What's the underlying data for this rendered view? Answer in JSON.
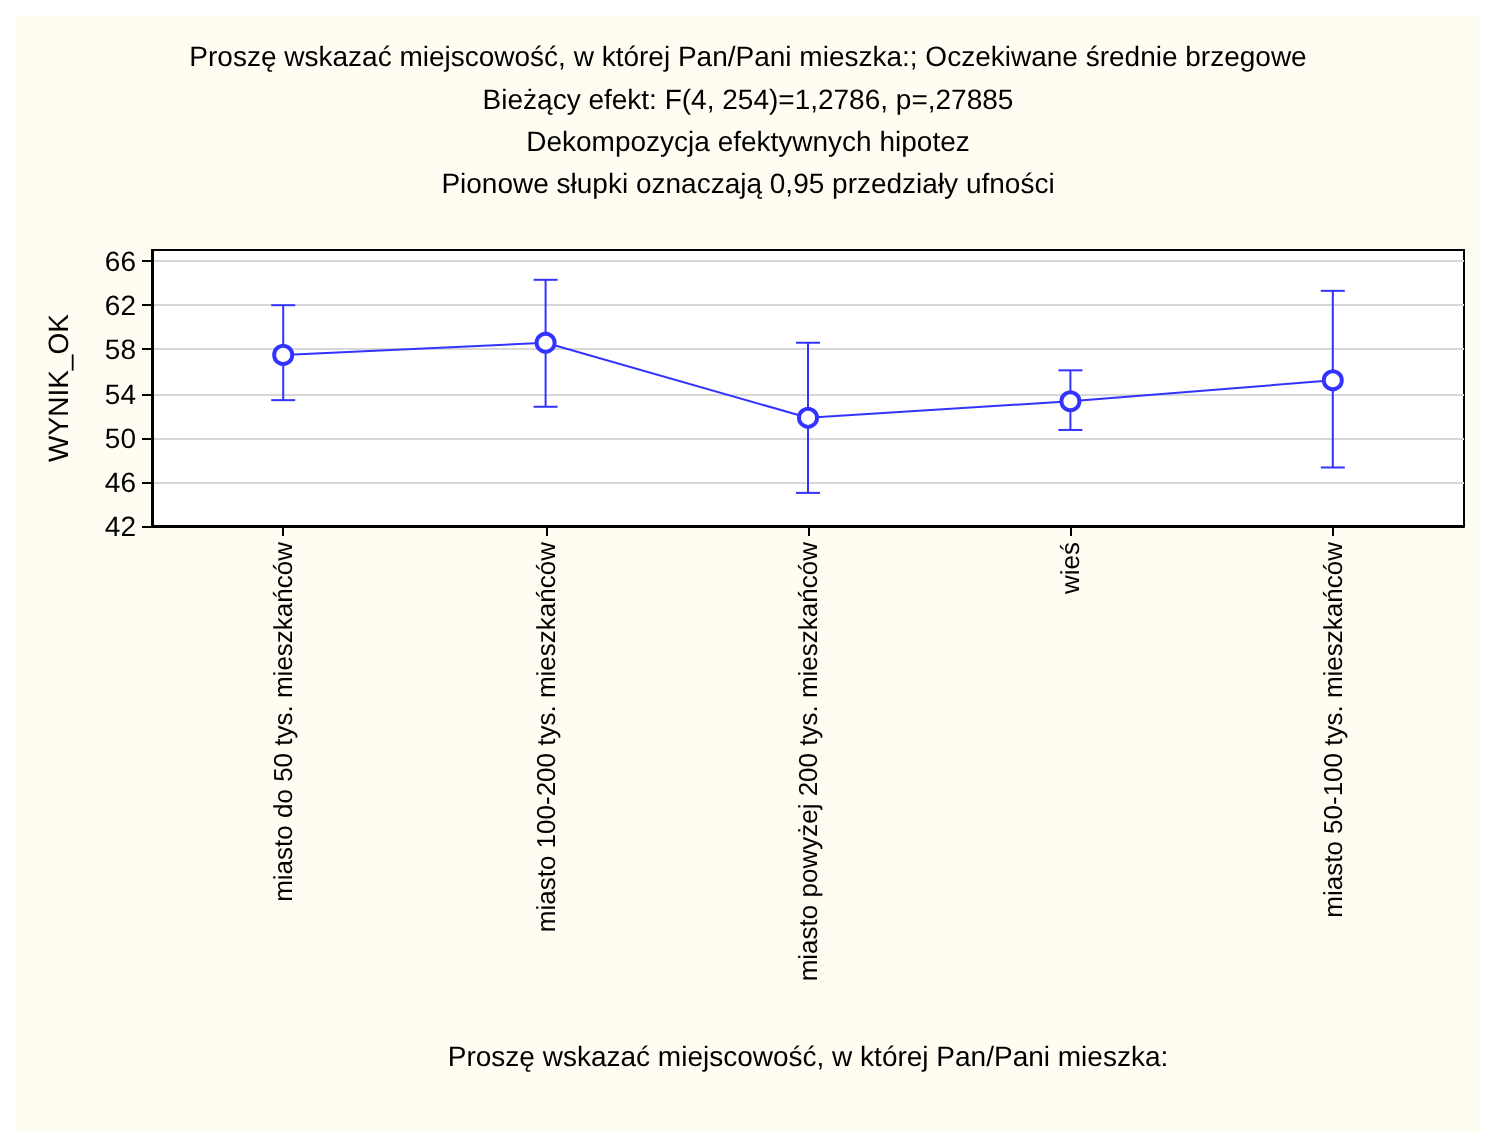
{
  "chart_data": {
    "type": "line",
    "title": "Proszę wskazać miejscowość, w której Pan/Pani mieszka:; Oczekiwane średnie brzegowe",
    "subtitle": "Bieżący efekt: F(4, 254)=1,2786, p=,27885\nDekompozycja efektywnych hipotez\nPionowe słupki oznaczają 0,95 przedziały ufności",
    "xlabel": "Proszę wskazać miejscowość, w której Pan/Pani mieszka:",
    "ylabel": "WYNIK_OK",
    "categories": [
      "miasto do 50 tys. mieszkańców",
      "miasto 100-200 tys. mieszkańców",
      "miasto powyżej 200 tys. mieszkańców",
      "wieś",
      "miasto 50-100 tys. mieszkańców"
    ],
    "series": [
      {
        "color": "#3333ff",
        "values": [
          57.5,
          58.6,
          51.8,
          53.3,
          55.2
        ],
        "errors": [
          [
            53.4,
            62
          ],
          [
            52.8,
            64.3
          ],
          [
            45,
            58.6
          ],
          [
            50.7,
            56.1
          ],
          [
            47.3,
            63.3
          ]
        ]
      }
    ],
    "ylim": [
      42,
      67
    ],
    "yticks": [
      42,
      46,
      50,
      54,
      58,
      62,
      66
    ],
    "grid": "y",
    "marker": "circle",
    "line_style": "solid"
  }
}
